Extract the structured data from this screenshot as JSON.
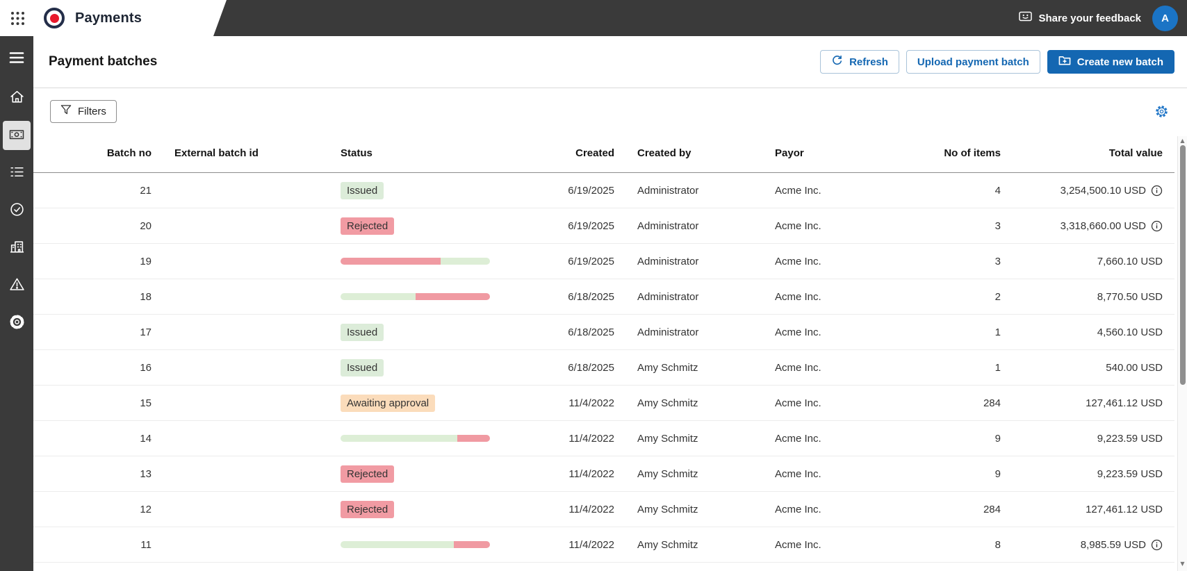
{
  "topbar": {
    "app_name": "Payments",
    "feedback_label": "Share your feedback",
    "avatar_initial": "A"
  },
  "sidebar": {
    "items": [
      {
        "id": "menu",
        "icon": "hamburger-icon",
        "active": false
      },
      {
        "id": "home",
        "icon": "home-icon",
        "active": false
      },
      {
        "id": "payments",
        "icon": "banknote-icon",
        "active": true
      },
      {
        "id": "batch-list",
        "icon": "list-icon",
        "active": false
      },
      {
        "id": "approvals",
        "icon": "check-circle-icon",
        "active": false
      },
      {
        "id": "organization",
        "icon": "building-icon",
        "active": false
      },
      {
        "id": "alerts",
        "icon": "warning-triangle-icon",
        "active": false
      },
      {
        "id": "settings",
        "icon": "gear-icon",
        "active": false
      }
    ]
  },
  "page": {
    "title": "Payment batches",
    "actions": {
      "refresh": "Refresh",
      "upload": "Upload payment batch",
      "create": "Create new batch"
    },
    "filters_label": "Filters"
  },
  "table": {
    "columns": [
      "Batch no",
      "External batch id",
      "Status",
      "Created",
      "Created by",
      "Payor",
      "No of items",
      "Total value"
    ],
    "rows": [
      {
        "batch_no": "21",
        "external_id": "",
        "status": {
          "kind": "badge",
          "label": "Issued",
          "variant": "green"
        },
        "created": "6/19/2025",
        "created_by": "Administrator",
        "payor": "Acme Inc.",
        "items": "4",
        "total": "3,254,500.10 USD",
        "info": true
      },
      {
        "batch_no": "20",
        "external_id": "",
        "status": {
          "kind": "badge",
          "label": "Rejected",
          "variant": "red"
        },
        "created": "6/19/2025",
        "created_by": "Administrator",
        "payor": "Acme Inc.",
        "items": "3",
        "total": "3,318,660.00 USD",
        "info": true
      },
      {
        "batch_no": "19",
        "external_id": "",
        "status": {
          "kind": "progress",
          "segments": [
            {
              "color": "pink",
              "pct": 67
            },
            {
              "color": "green",
              "pct": 33
            }
          ]
        },
        "created": "6/19/2025",
        "created_by": "Administrator",
        "payor": "Acme Inc.",
        "items": "3",
        "total": "7,660.10 USD",
        "info": false
      },
      {
        "batch_no": "18",
        "external_id": "",
        "status": {
          "kind": "progress",
          "segments": [
            {
              "color": "green",
              "pct": 50
            },
            {
              "color": "pink",
              "pct": 50
            }
          ]
        },
        "created": "6/18/2025",
        "created_by": "Administrator",
        "payor": "Acme Inc.",
        "items": "2",
        "total": "8,770.50 USD",
        "info": false
      },
      {
        "batch_no": "17",
        "external_id": "",
        "status": {
          "kind": "badge",
          "label": "Issued",
          "variant": "green"
        },
        "created": "6/18/2025",
        "created_by": "Administrator",
        "payor": "Acme Inc.",
        "items": "1",
        "total": "4,560.10 USD",
        "info": false
      },
      {
        "batch_no": "16",
        "external_id": "",
        "status": {
          "kind": "badge",
          "label": "Issued",
          "variant": "green"
        },
        "created": "6/18/2025",
        "created_by": "Amy Schmitz",
        "payor": "Acme Inc.",
        "items": "1",
        "total": "540.00 USD",
        "info": false
      },
      {
        "batch_no": "15",
        "external_id": "",
        "status": {
          "kind": "badge",
          "label": "Awaiting approval",
          "variant": "orange"
        },
        "created": "11/4/2022",
        "created_by": "Amy Schmitz",
        "payor": "Acme Inc.",
        "items": "284",
        "total": "127,461.12 USD",
        "info": false
      },
      {
        "batch_no": "14",
        "external_id": "",
        "status": {
          "kind": "progress",
          "segments": [
            {
              "color": "green",
              "pct": 78
            },
            {
              "color": "pink",
              "pct": 22
            }
          ]
        },
        "created": "11/4/2022",
        "created_by": "Amy Schmitz",
        "payor": "Acme Inc.",
        "items": "9",
        "total": "9,223.59 USD",
        "info": false
      },
      {
        "batch_no": "13",
        "external_id": "",
        "status": {
          "kind": "badge",
          "label": "Rejected",
          "variant": "red"
        },
        "created": "11/4/2022",
        "created_by": "Amy Schmitz",
        "payor": "Acme Inc.",
        "items": "9",
        "total": "9,223.59 USD",
        "info": false
      },
      {
        "batch_no": "12",
        "external_id": "",
        "status": {
          "kind": "badge",
          "label": "Rejected",
          "variant": "red"
        },
        "created": "11/4/2022",
        "created_by": "Amy Schmitz",
        "payor": "Acme Inc.",
        "items": "284",
        "total": "127,461.12 USD",
        "info": false
      },
      {
        "batch_no": "11",
        "external_id": "",
        "status": {
          "kind": "progress",
          "segments": [
            {
              "color": "green",
              "pct": 76
            },
            {
              "color": "pink",
              "pct": 24
            }
          ]
        },
        "created": "11/4/2022",
        "created_by": "Amy Schmitz",
        "payor": "Acme Inc.",
        "items": "8",
        "total": "8,985.59 USD",
        "info": true
      }
    ]
  },
  "colors": {
    "topbar_dark": "#3a3a3a",
    "accent_blue": "#1467b2",
    "avatar_blue": "#1b74c5",
    "logo_navy": "#242e49",
    "logo_red": "#e8192c",
    "badge_green": "#dcecd9",
    "badge_red": "#f19ba3",
    "badge_orange": "#fbdcbb",
    "bar_green": "#ddeed6",
    "bar_pink": "#f09aa2"
  }
}
